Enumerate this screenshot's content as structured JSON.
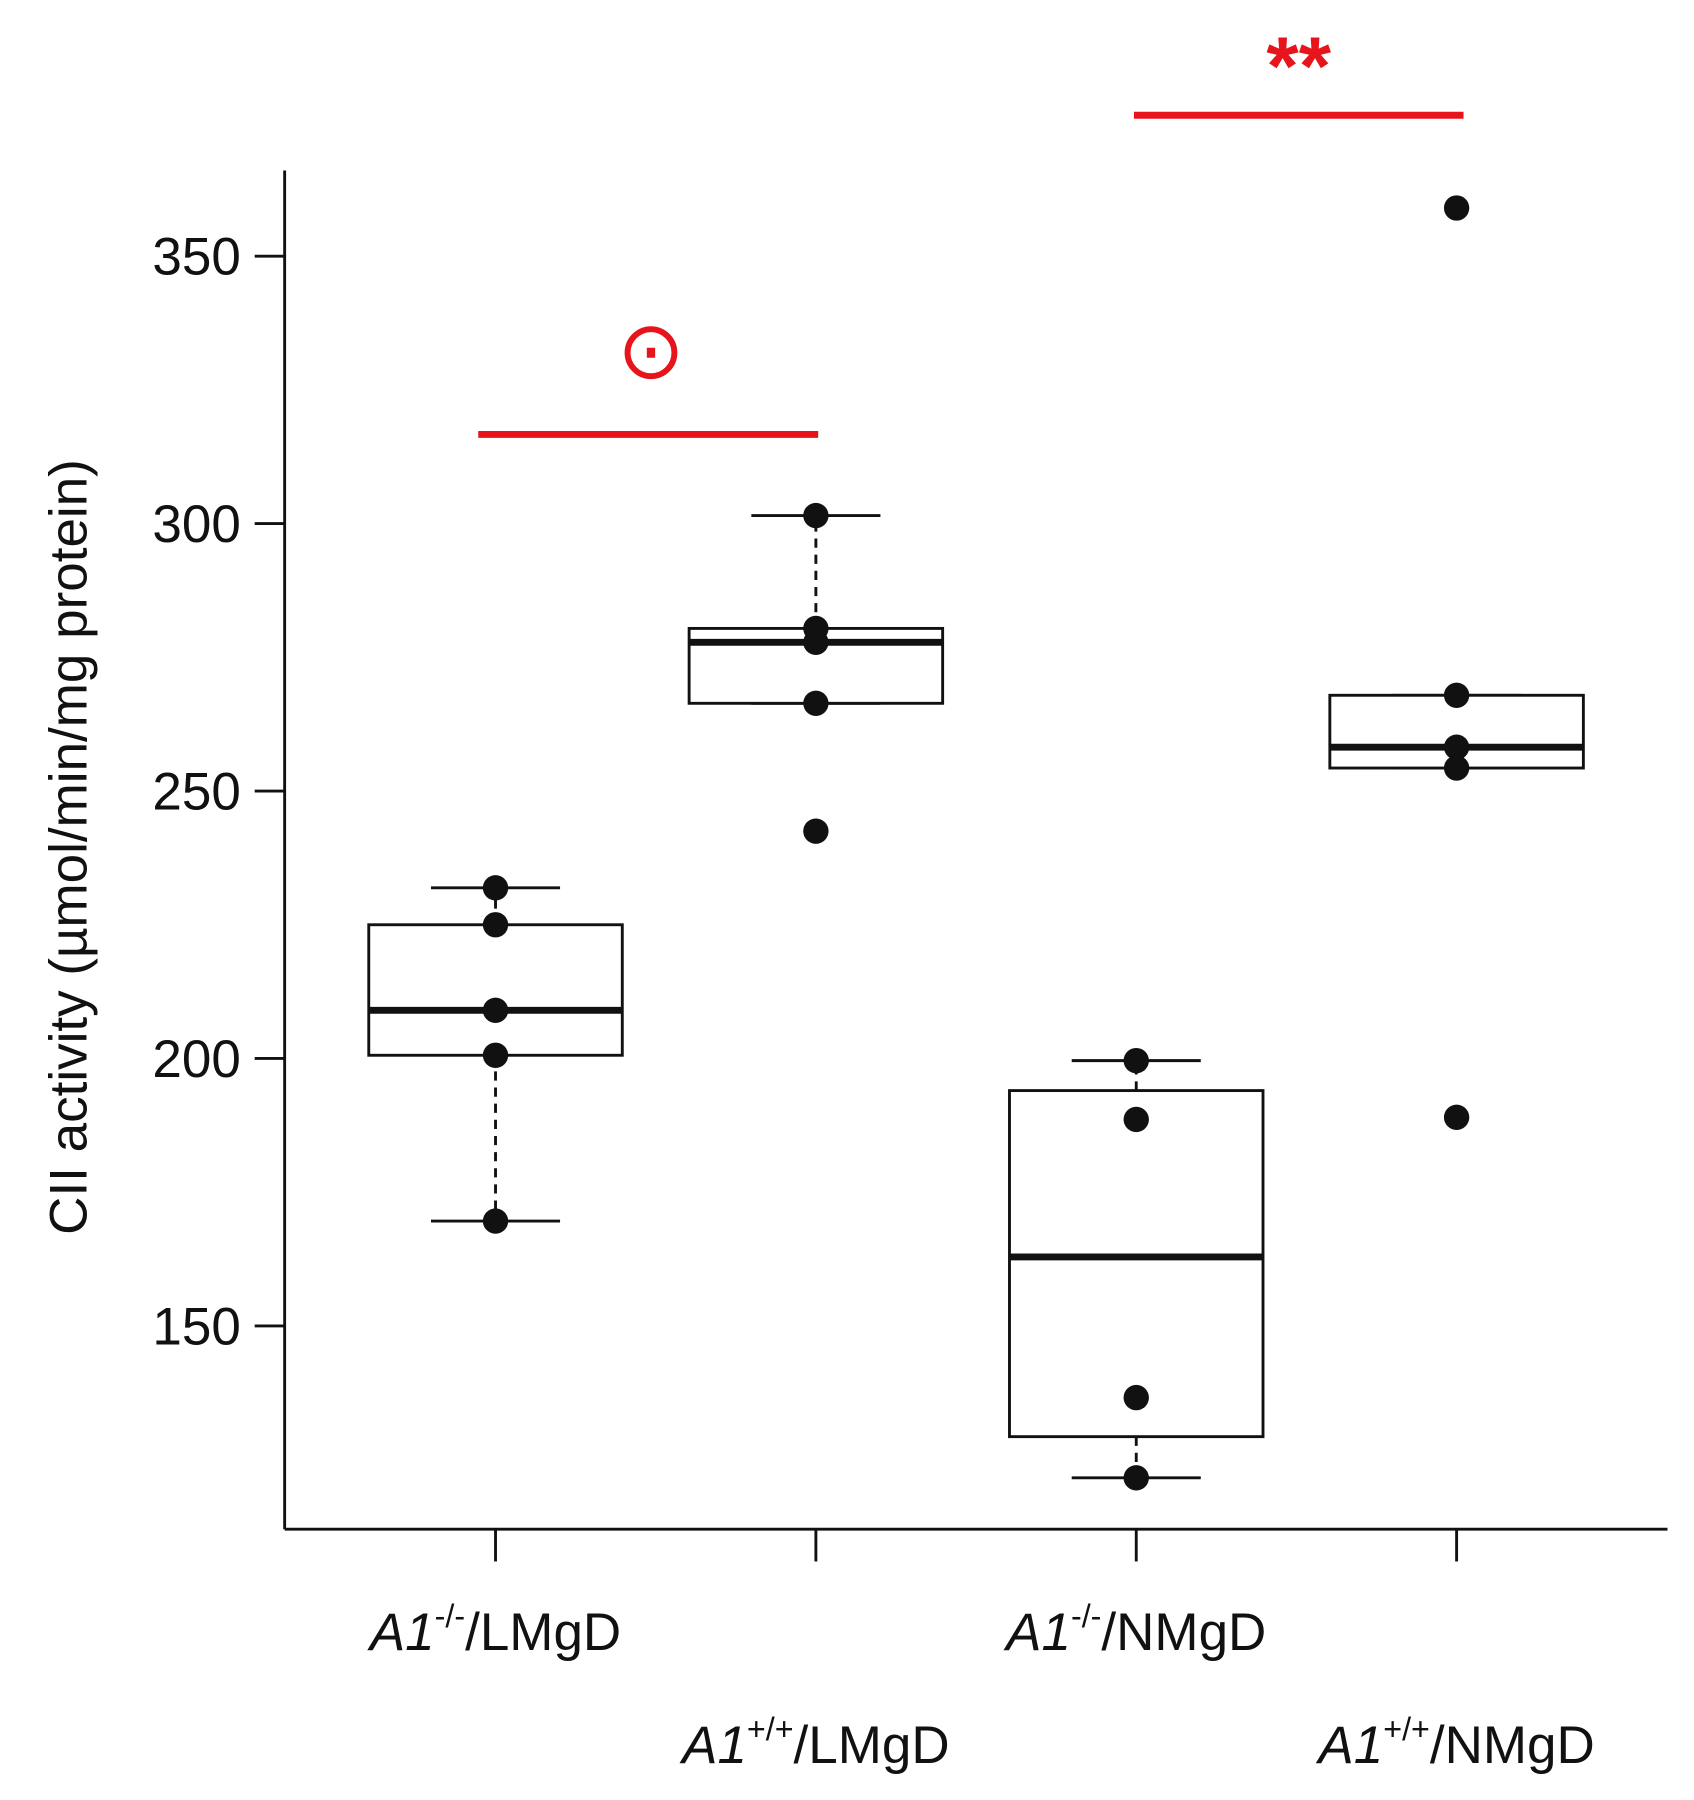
{
  "chart_data": {
    "type": "box",
    "y_label": "CII activity (µmol/min/mg protein)",
    "categories": [
      {
        "gene": "A1",
        "genotype": "-/-",
        "diet": "/LMgD"
      },
      {
        "gene": "A1",
        "genotype": "+/+",
        "diet": "/LMgD"
      },
      {
        "gene": "A1",
        "genotype": "-/-",
        "diet": "/NMgD"
      },
      {
        "gene": "A1",
        "genotype": "+/+",
        "diet": "/NMgD"
      }
    ],
    "boxes": [
      {
        "whisker_low": 169.6,
        "q1": 200.6,
        "median": 209,
        "q3": 225,
        "whisker_high": 231.9,
        "points": [
          231.9,
          225,
          209,
          200.6,
          169.6
        ]
      },
      {
        "whisker_low": 266.4,
        "q1": 266.4,
        "median": 277.8,
        "q3": 280.4,
        "whisker_high": 301.5,
        "points": [
          301.5,
          280.4,
          277.8,
          266.4,
          242.5
        ]
      },
      {
        "whisker_low": 121.6,
        "q1": 129.3,
        "median": 162.9,
        "q3": 194,
        "whisker_high": 199.6,
        "points": [
          199.6,
          188.6,
          136.6,
          121.6
        ]
      },
      {
        "whisker_low": 254.3,
        "q1": 254.3,
        "median": 258.2,
        "q3": 267.9,
        "whisker_high": 267.9,
        "points": [
          359,
          267.9,
          258.2,
          254.3,
          189
        ]
      }
    ],
    "annotations": [
      {
        "text": "⊙"
      },
      {
        "text": "**"
      }
    ],
    "annotation_color": "#e8141b",
    "ylim": [
      112,
      366
    ],
    "yticks": [
      150,
      200,
      250,
      300,
      350
    ]
  }
}
